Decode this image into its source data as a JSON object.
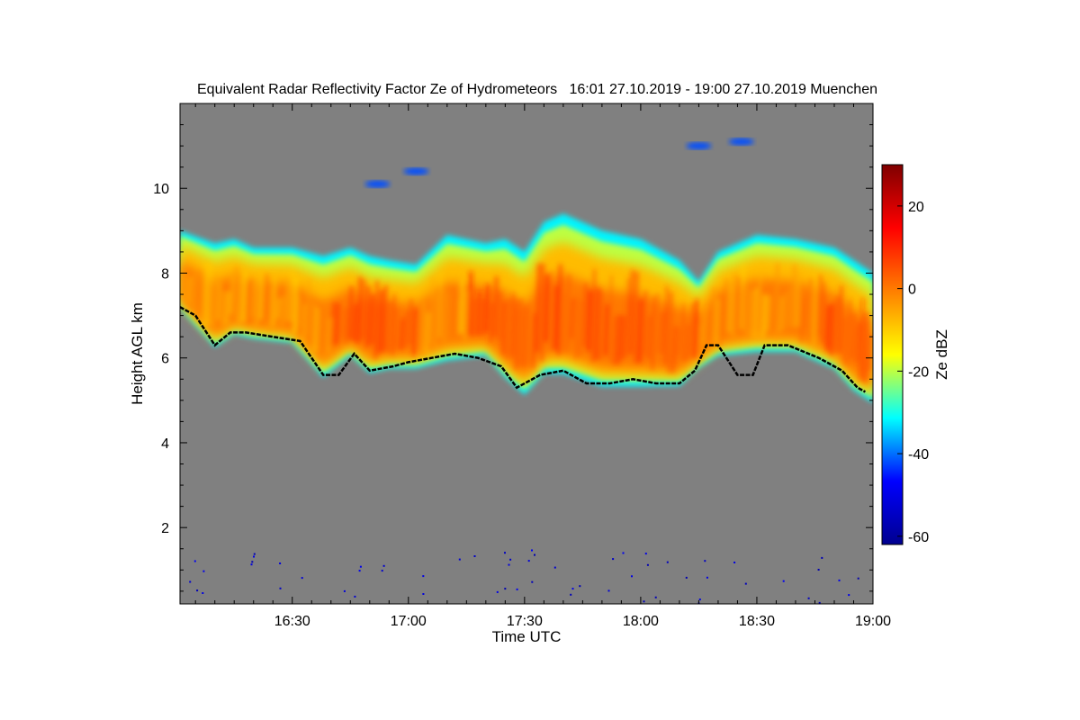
{
  "chart_data": {
    "type": "heatmap",
    "title": "Equivalent Radar Reflectivity Factor Ze of Hydrometeors   16:01 27.10.2019 - 19:00 27.10.2019 Muenchen",
    "xlabel": "Time UTC",
    "ylabel": "Height AGL km",
    "x_ticks": [
      "16:30",
      "17:00",
      "17:30",
      "18:00",
      "18:30",
      "19:00"
    ],
    "x_tick_minutes": [
      30,
      60,
      90,
      120,
      150,
      180
    ],
    "xlim_minutes": [
      1,
      180
    ],
    "y_ticks": [
      2,
      4,
      6,
      8,
      10
    ],
    "ylim": [
      0.2,
      12.0
    ],
    "background_color": "#808080",
    "colorbar": {
      "label": "Ze dBZ",
      "range": [
        -62,
        30
      ],
      "ticks": [
        -60,
        -40,
        -20,
        0,
        20
      ],
      "colors": [
        "#00008f",
        "#0000ff",
        "#00ffff",
        "#ffff00",
        "#ff7f00",
        "#ff0000",
        "#7f0000"
      ]
    },
    "cloud_layer": {
      "description_base_top_km": [
        [
          1,
          7.2,
          9.0
        ],
        [
          10,
          6.3,
          8.7
        ],
        [
          15,
          6.6,
          8.8
        ],
        [
          20,
          6.5,
          8.6
        ],
        [
          30,
          6.4,
          8.6
        ],
        [
          38,
          5.6,
          8.4
        ],
        [
          45,
          6.1,
          8.6
        ],
        [
          50,
          5.7,
          8.4
        ],
        [
          55,
          5.8,
          8.3
        ],
        [
          62,
          5.8,
          8.2
        ],
        [
          70,
          6.0,
          8.9
        ],
        [
          80,
          6.1,
          8.7
        ],
        [
          85,
          5.6,
          8.8
        ],
        [
          90,
          5.2,
          8.5
        ],
        [
          95,
          5.7,
          9.2
        ],
        [
          100,
          5.7,
          9.4
        ],
        [
          110,
          5.4,
          9.0
        ],
        [
          120,
          5.4,
          8.8
        ],
        [
          130,
          5.4,
          8.3
        ],
        [
          135,
          5.8,
          7.8
        ],
        [
          140,
          6.1,
          8.5
        ],
        [
          150,
          6.2,
          8.9
        ],
        [
          160,
          6.2,
          8.8
        ],
        [
          170,
          5.8,
          8.6
        ],
        [
          175,
          5.3,
          8.3
        ],
        [
          180,
          5.0,
          8.0
        ]
      ]
    },
    "cloud_base_line_km": [
      [
        1,
        7.2
      ],
      [
        5,
        7.0
      ],
      [
        10,
        6.3
      ],
      [
        14,
        6.6
      ],
      [
        18,
        6.6
      ],
      [
        25,
        6.5
      ],
      [
        32,
        6.4
      ],
      [
        38,
        5.6
      ],
      [
        42,
        5.6
      ],
      [
        46,
        6.1
      ],
      [
        50,
        5.7
      ],
      [
        56,
        5.8
      ],
      [
        60,
        5.9
      ],
      [
        66,
        6.0
      ],
      [
        72,
        6.1
      ],
      [
        78,
        6.0
      ],
      [
        84,
        5.8
      ],
      [
        88,
        5.3
      ],
      [
        94,
        5.6
      ],
      [
        100,
        5.7
      ],
      [
        106,
        5.4
      ],
      [
        112,
        5.4
      ],
      [
        118,
        5.5
      ],
      [
        124,
        5.4
      ],
      [
        130,
        5.4
      ],
      [
        134,
        5.7
      ],
      [
        137,
        6.3
      ],
      [
        140,
        6.3
      ],
      [
        145,
        5.6
      ],
      [
        149,
        5.6
      ],
      [
        152,
        6.3
      ],
      [
        158,
        6.3
      ],
      [
        166,
        6.0
      ],
      [
        172,
        5.7
      ],
      [
        176,
        5.3
      ],
      [
        178,
        5.2
      ]
    ],
    "cirrus_patches_km": [
      [
        52,
        10.1
      ],
      [
        62,
        10.4
      ],
      [
        135,
        11.0
      ],
      [
        146,
        11.1
      ]
    ]
  }
}
